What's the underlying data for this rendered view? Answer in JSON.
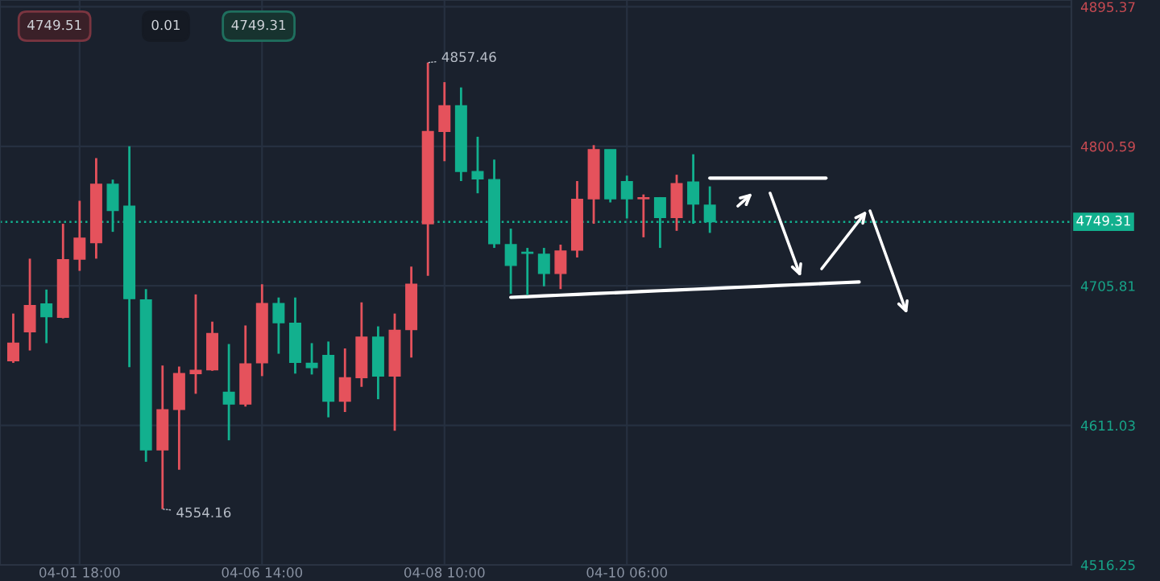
{
  "chart_data": {
    "type": "candlestick",
    "categories": [
      null,
      null,
      null,
      null,
      "04-01 18:00",
      null,
      null,
      null,
      null,
      null,
      null,
      null,
      null,
      null,
      null,
      "04-06 14:00",
      null,
      null,
      null,
      null,
      null,
      null,
      null,
      null,
      null,
      null,
      "04-08 10:00",
      null,
      null,
      null,
      null,
      null,
      null,
      null,
      null,
      null,
      null,
      "04-10 06:00",
      null,
      null,
      null,
      null,
      null,
      null,
      null,
      null,
      null,
      null,
      null,
      null,
      null,
      null,
      null,
      null,
      null,
      null,
      null,
      null,
      null,
      null,
      null,
      null,
      null,
      null
    ],
    "ohlc": [
      [
        4654.9,
        4687.0,
        4653.5,
        4666.9
      ],
      [
        4674.6,
        4724.3,
        4661.9,
        4692.4
      ],
      [
        4693.5,
        4703.3,
        4666.9,
        4684.8
      ],
      [
        4684.4,
        4748.0,
        4683.7,
        4723.6
      ],
      [
        4724.0,
        4763.6,
        4716.0,
        4738.2
      ],
      [
        4735.2,
        4792.6,
        4724.3,
        4774.8
      ],
      [
        4774.8,
        4778.0,
        4742.5,
        4757.0
      ],
      [
        4760.0,
        4800.6,
        4650.6,
        4697.1
      ],
      [
        4696.3,
        4703.6,
        4586.3,
        4594.4
      ],
      [
        4594.4,
        4651.7,
        4554.16,
        4621.6
      ],
      [
        4621.9,
        4651.0,
        4580.9,
        4646.2
      ],
      [
        4646.2,
        4700.0,
        4632.5,
        4648.4
      ],
      [
        4648.8,
        4681.5,
        4648.1,
        4673.5
      ],
      [
        4633.6,
        4666.3,
        4600.9,
        4625.5
      ],
      [
        4625.5,
        4678.9,
        4623.8,
        4652.8
      ],
      [
        4653.5,
        4706.9,
        4644.5,
        4693.8
      ],
      [
        4693.8,
        4697.9,
        4659.7,
        4680.8
      ],
      [
        4680.4,
        4697.9,
        4646.2,
        4653.9
      ],
      [
        4653.2,
        4666.9,
        4645.6,
        4650.3
      ],
      [
        4658.6,
        4668.0,
        4616.5,
        4627.4
      ],
      [
        4627.4,
        4663.3,
        4620.1,
        4643.4
      ],
      [
        4643.4,
        4694.6,
        4637.2,
        4671.0
      ],
      [
        4671.0,
        4678.3,
        4628.8,
        4644.5
      ],
      [
        4644.5,
        4687.0,
        4607.4,
        4675.6
      ],
      [
        4676.1,
        4718.9,
        4657.1,
        4706.9
      ],
      [
        4748.0,
        4857.46,
        4712.7,
        4810.7
      ],
      [
        4810.7,
        4844.2,
        4790.5,
        4828.2
      ],
      [
        4828.2,
        4840.6,
        4777.0,
        4783.5
      ],
      [
        4783.5,
        4807.1,
        4768.7,
        4778.5
      ],
      [
        4778.0,
        4791.6,
        4731.6,
        4734.5
      ],
      [
        4733.8,
        4744.7,
        4700.4,
        4719.7
      ],
      [
        4728.7,
        4731.6,
        4699.6,
        4727.9
      ],
      [
        4727.3,
        4731.6,
        4705.5,
        4714.2
      ],
      [
        4714.2,
        4733.8,
        4703.6,
        4729.5
      ],
      [
        4730.1,
        4777.0,
        4725.1,
        4764.6
      ],
      [
        4765.0,
        4801.4,
        4748.0,
        4798.4
      ],
      [
        4798.4,
        4798.4,
        4762.5,
        4765.0
      ],
      [
        4776.6,
        4780.7,
        4751.6,
        4765.0
      ],
      [
        4765.0,
        4767.9,
        4738.8,
        4765.7
      ],
      [
        4765.7,
        4766.1,
        4731.6,
        4752.3
      ],
      [
        4752.3,
        4781.3,
        4743.2,
        4775.2
      ],
      [
        4776.3,
        4795.2,
        4748.0,
        4761.4
      ],
      [
        4760.6,
        4773.4,
        4741.8,
        4749.31
      ],
      null,
      null,
      null,
      null,
      null,
      null,
      null,
      null,
      null,
      null,
      null,
      null,
      null,
      null,
      null,
      null,
      null,
      null,
      null,
      null,
      null
    ],
    "colors": [
      "#e5525c",
      "#e5525c",
      "#12b08e",
      "#e5525c",
      "#e5525c",
      "#e5525c",
      "#12b08e",
      "#12b08e",
      "#12b08e",
      "#e5525c",
      "#e5525c",
      "#e5525c",
      "#e5525c",
      "#12b08e",
      "#e5525c",
      "#e5525c",
      "#12b08e",
      "#12b08e",
      "#12b08e",
      "#12b08e",
      "#e5525c",
      "#e5525c",
      "#12b08e",
      "#e5525c",
      "#e5525c",
      "#e5525c",
      "#e5525c",
      "#12b08e",
      "#12b08e",
      "#12b08e",
      "#12b08e",
      "#12b08e",
      "#12b08e",
      "#e5525c",
      "#e5525c",
      "#e5525c",
      "#12b08e",
      "#12b08e",
      "#e5525c",
      "#12b08e",
      "#e5525c",
      "#12b08e",
      "#12b08e",
      null,
      null,
      null,
      null,
      null,
      null,
      null,
      null,
      null,
      null,
      null,
      null,
      null,
      null,
      null,
      null,
      null,
      null,
      null,
      null,
      null
    ],
    "series": [
      {
        "type": "line",
        "color": "#ffffff",
        "values": [
          null,
          null,
          null,
          null,
          null,
          null,
          null,
          null,
          null,
          null,
          null,
          null,
          null,
          null,
          null,
          null,
          null,
          null,
          null,
          null,
          null,
          null,
          null,
          null,
          null,
          null,
          null,
          null,
          null,
          null,
          null,
          null,
          null,
          null,
          null,
          null,
          null,
          null,
          null,
          null,
          null,
          null,
          4779,
          4779,
          4779,
          4779,
          4779,
          4779,
          4779,
          4779,
          null,
          null,
          null,
          null,
          null,
          null,
          null,
          null,
          null,
          null,
          null,
          null,
          null,
          null
        ]
      },
      {
        "type": "line",
        "color": "#ffffff",
        "values": [
          null,
          null,
          null,
          null,
          null,
          null,
          null,
          null,
          null,
          null,
          null,
          null,
          null,
          null,
          null,
          null,
          null,
          null,
          null,
          null,
          null,
          null,
          null,
          null,
          null,
          null,
          null,
          null,
          null,
          null,
          4698,
          4698.5,
          4699,
          4699.5,
          4700,
          4700.5,
          4701,
          4701.5,
          4702,
          4702.5,
          4703,
          4703.5,
          4704,
          4704.5,
          4705,
          4705.5,
          4706,
          4706.5,
          4707,
          4707.5,
          4708,
          4708.5,
          null,
          null,
          null,
          null,
          null,
          null,
          null,
          null,
          null,
          null,
          null,
          null
        ]
      }
    ],
    "ylim": [
      4516.25,
      4900
    ],
    "yticks": [
      4516.25,
      4611.03,
      4705.81,
      4800.59,
      4895.37
    ],
    "ref_lines": [
      {
        "axis": "y",
        "value": 4749.31,
        "label": "4749.31",
        "color": "#12b08e",
        "line_style": "dotted"
      }
    ],
    "annotations": [
      "4857.46",
      "4554.16",
      "4749.51",
      "0.01",
      "4749.31"
    ],
    "grid": true
  }
}
